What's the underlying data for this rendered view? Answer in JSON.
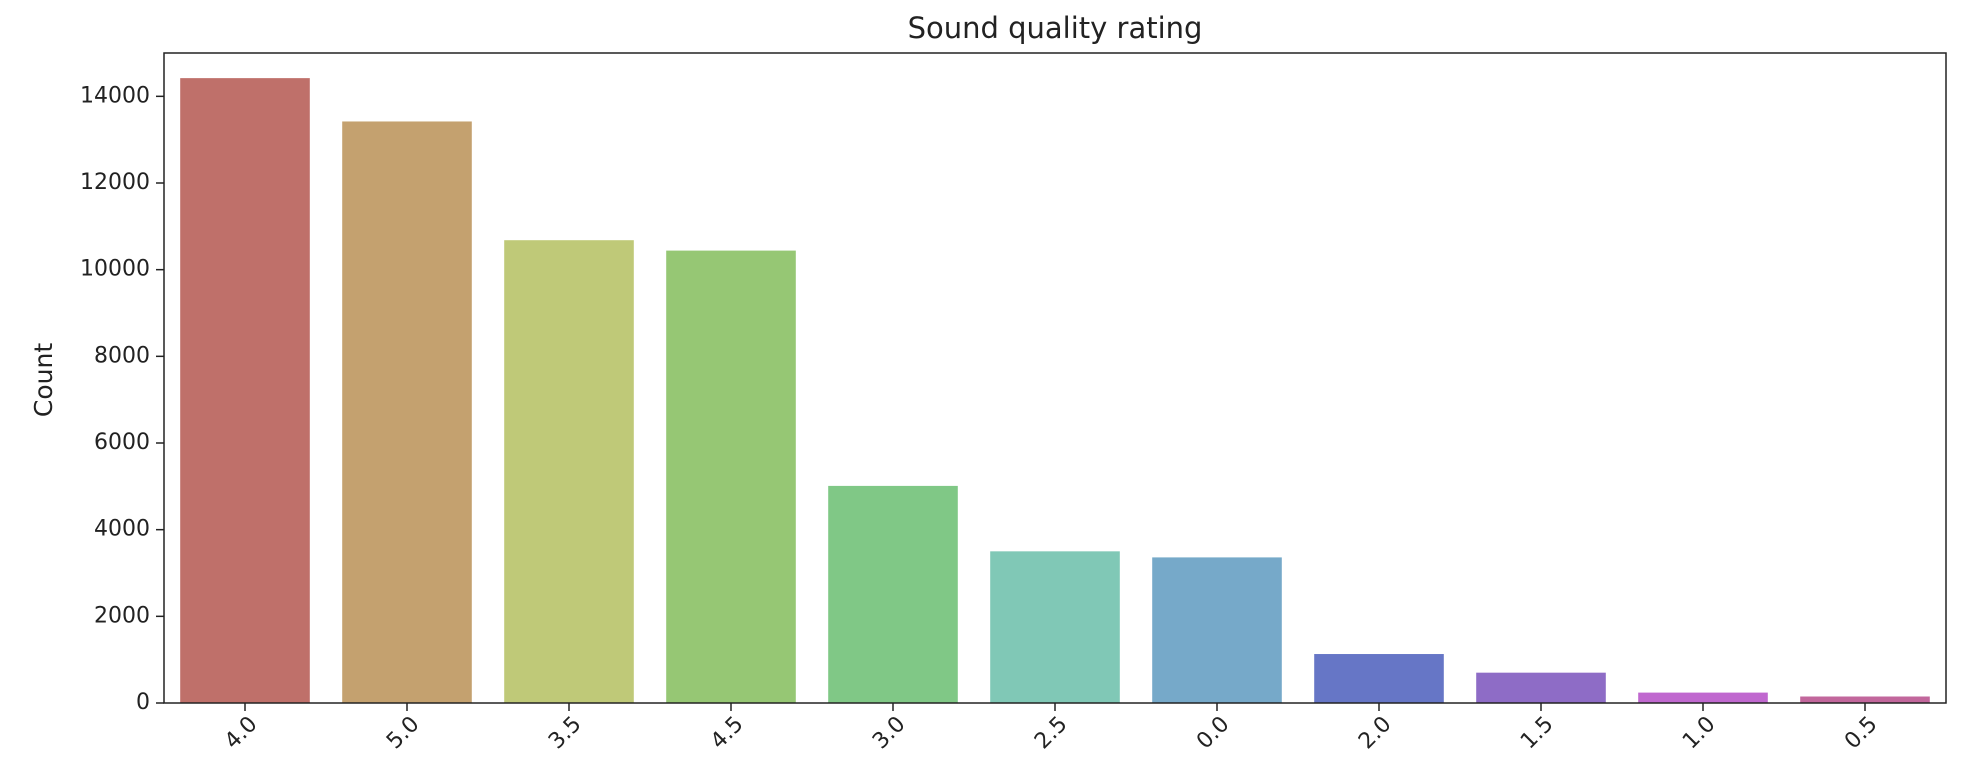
{
  "chart_data": {
    "type": "bar",
    "title": "Sound quality rating",
    "xlabel": "",
    "ylabel": "Count",
    "categories": [
      "4.0",
      "5.0",
      "3.5",
      "4.5",
      "3.0",
      "2.5",
      "0.0",
      "2.0",
      "1.5",
      "1.0",
      "0.5"
    ],
    "values": [
      14420,
      13420,
      10680,
      10440,
      5010,
      3500,
      3360,
      1130,
      700,
      240,
      150
    ],
    "colors": [
      "#bf706a",
      "#c4a16f",
      "#bfc978",
      "#96c774",
      "#80c886",
      "#80c8b6",
      "#76a9c9",
      "#6676c6",
      "#8e6cc6",
      "#c068cf",
      "#c2679c"
    ],
    "ylim": [
      0,
      15000
    ],
    "yticks": [
      0,
      2000,
      4000,
      6000,
      8000,
      10000,
      12000,
      14000
    ],
    "grid": false,
    "legend": "none"
  }
}
